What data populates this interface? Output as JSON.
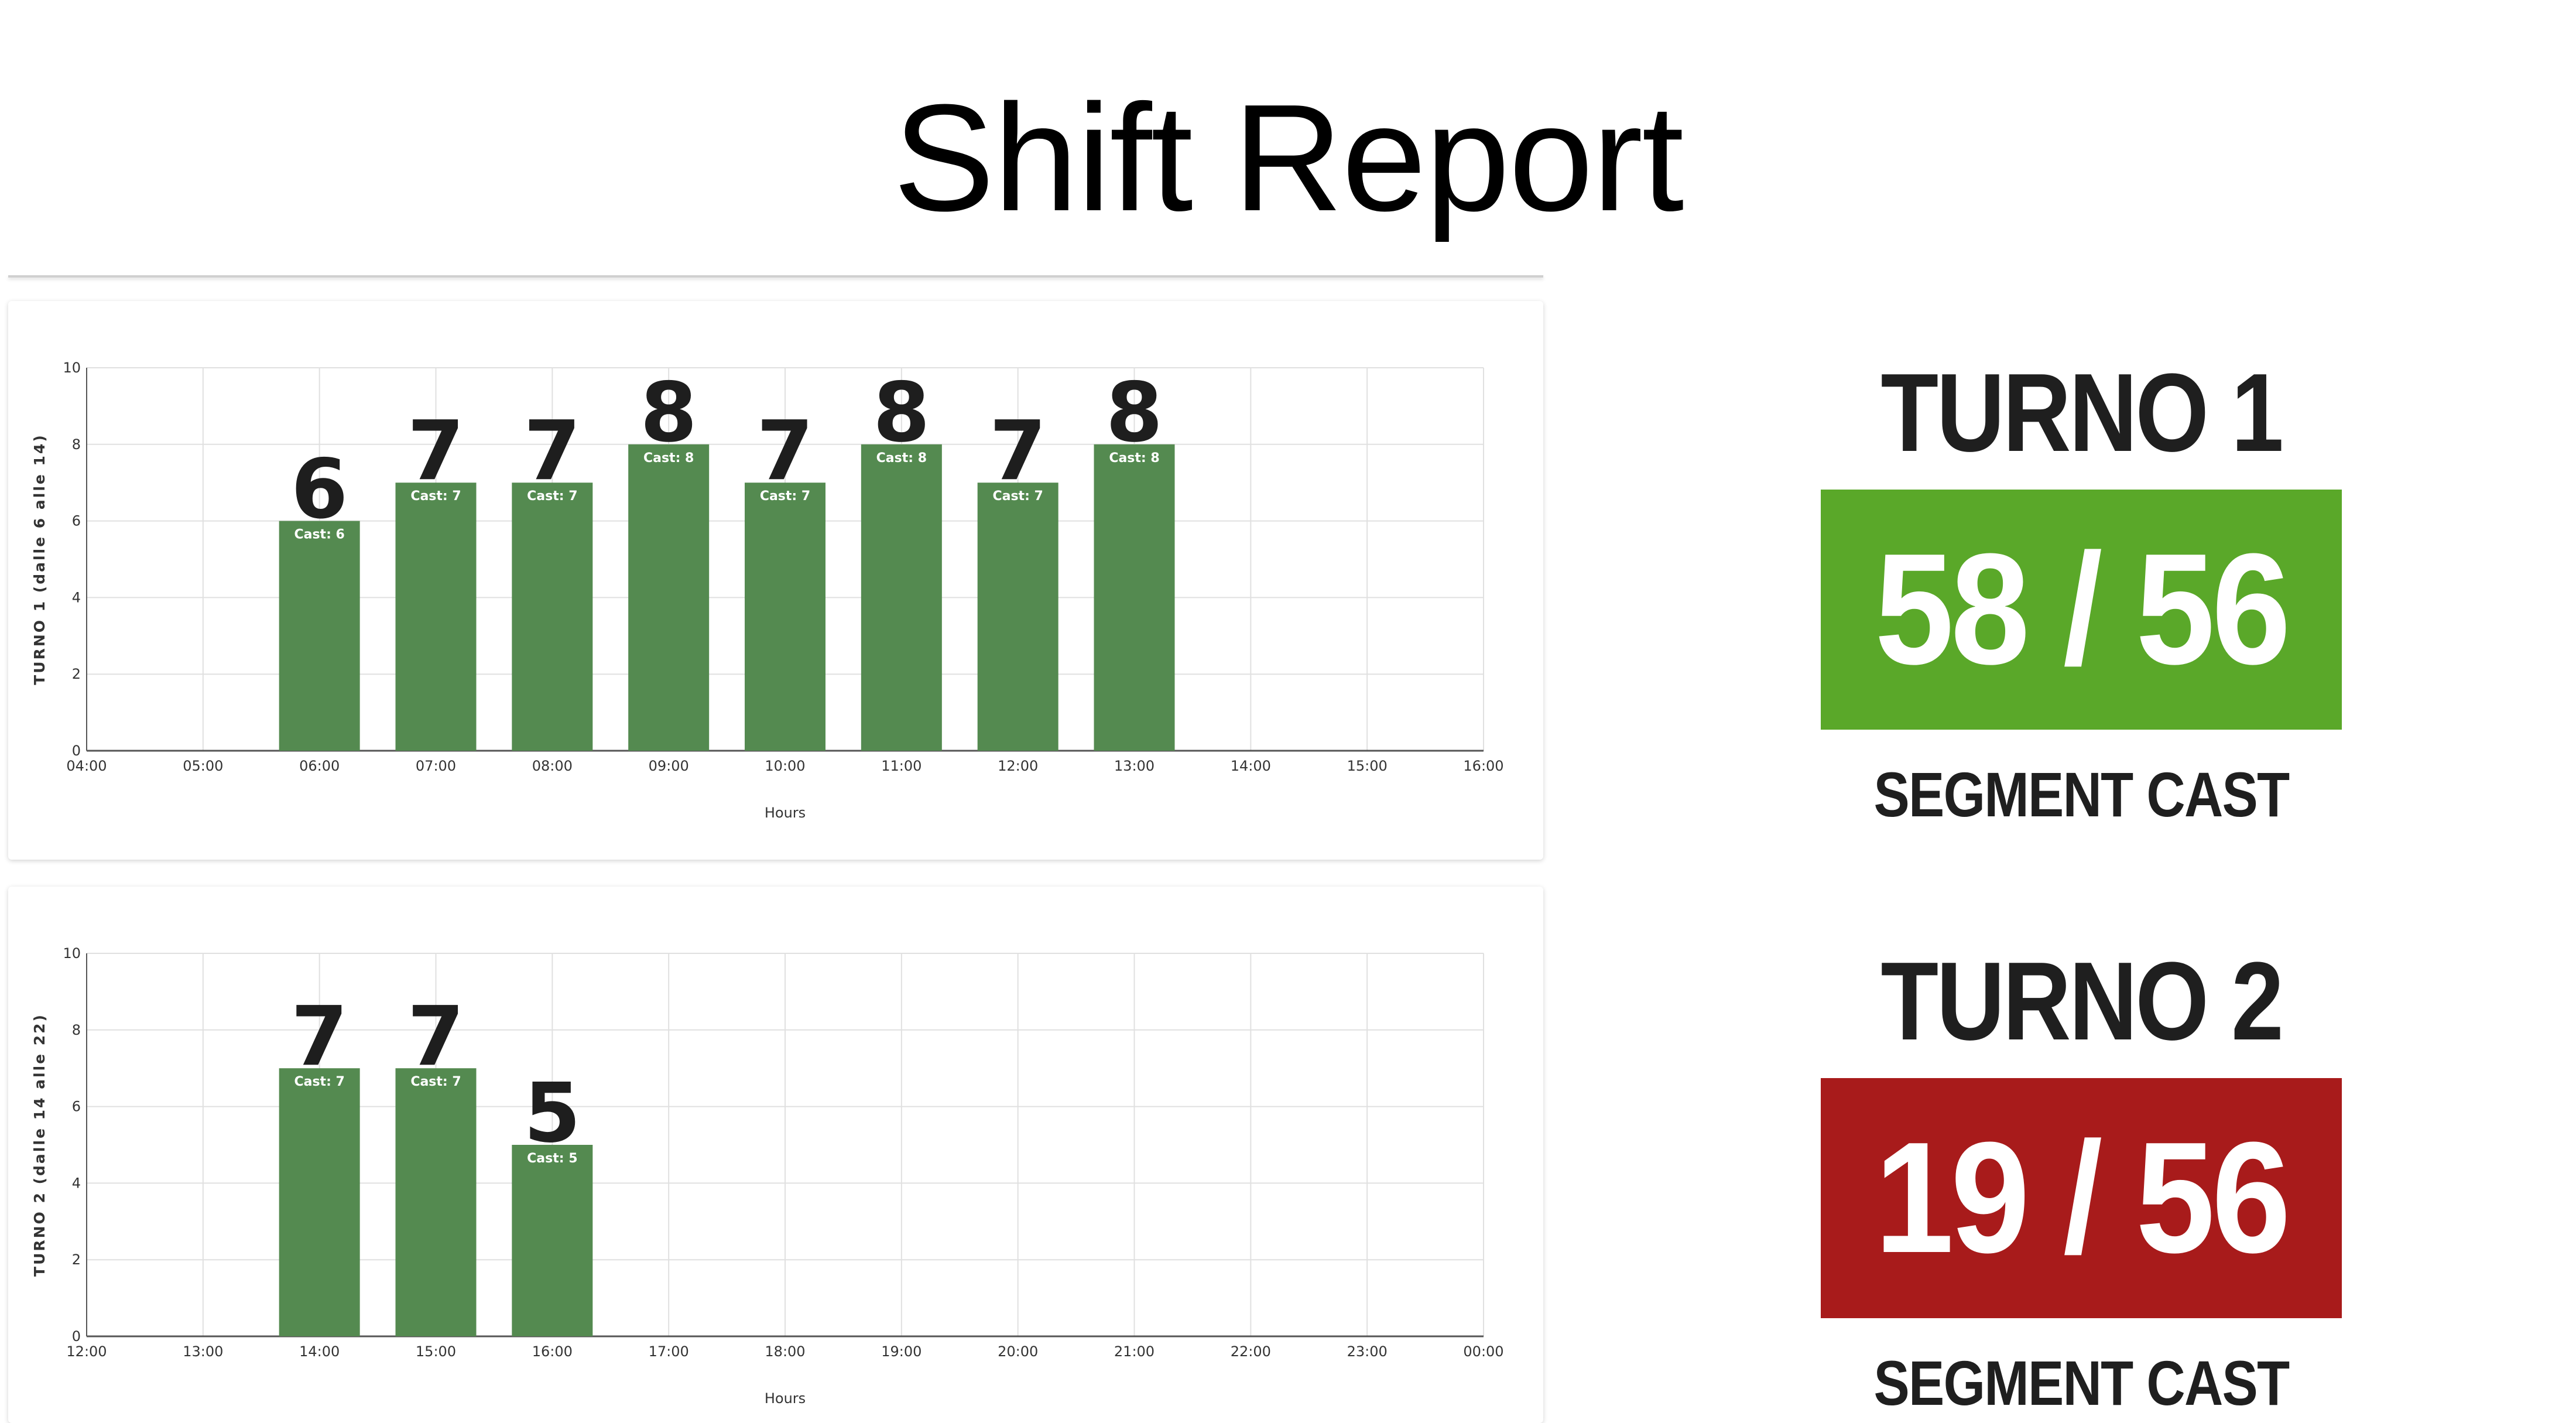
{
  "page": {
    "title": "Shift Report"
  },
  "colors": {
    "bar": "#548a50",
    "ok": "#5aa829",
    "bad": "#a81b1b",
    "grid": "#e0e0e0"
  },
  "kpis": [
    {
      "title": "TURNO 1",
      "value": "58 / 56",
      "label": "SEGMENT CAST",
      "color": "#5aa829"
    },
    {
      "title": "TURNO 2",
      "value": "19 / 56",
      "label": "SEGMENT CAST",
      "color": "#a81b1b"
    }
  ],
  "chart_data": [
    {
      "type": "bar",
      "x_ticks": [
        "04:00",
        "05:00",
        "06:00",
        "07:00",
        "08:00",
        "09:00",
        "10:00",
        "11:00",
        "12:00",
        "13:00",
        "14:00",
        "15:00",
        "16:00"
      ],
      "categories": [
        "06:00",
        "07:00",
        "08:00",
        "09:00",
        "10:00",
        "11:00",
        "12:00",
        "13:00"
      ],
      "values": [
        6,
        7,
        7,
        8,
        7,
        8,
        7,
        8
      ],
      "bar_labels": [
        "Cast: 6",
        "Cast: 7",
        "Cast: 7",
        "Cast: 8",
        "Cast: 7",
        "Cast: 8",
        "Cast: 7",
        "Cast: 8"
      ],
      "xlabel": "Hours",
      "ylabel": "TURNO 1 (dalle 6 alle 14)",
      "ylim": [
        0,
        10
      ],
      "y_ticks": [
        0,
        2,
        4,
        6,
        8,
        10
      ],
      "grid": true
    },
    {
      "type": "bar",
      "x_ticks": [
        "12:00",
        "13:00",
        "14:00",
        "15:00",
        "16:00",
        "17:00",
        "18:00",
        "19:00",
        "20:00",
        "21:00",
        "22:00",
        "23:00",
        "00:00"
      ],
      "categories": [
        "14:00",
        "15:00",
        "16:00"
      ],
      "values": [
        7,
        7,
        5
      ],
      "bar_labels": [
        "Cast: 7",
        "Cast: 7",
        "Cast: 5"
      ],
      "xlabel": "Hours",
      "ylabel": "TURNO 2 (dalle 14 alle 22)",
      "ylim": [
        0,
        10
      ],
      "y_ticks": [
        0,
        2,
        4,
        6,
        8,
        10
      ],
      "grid": true
    }
  ]
}
